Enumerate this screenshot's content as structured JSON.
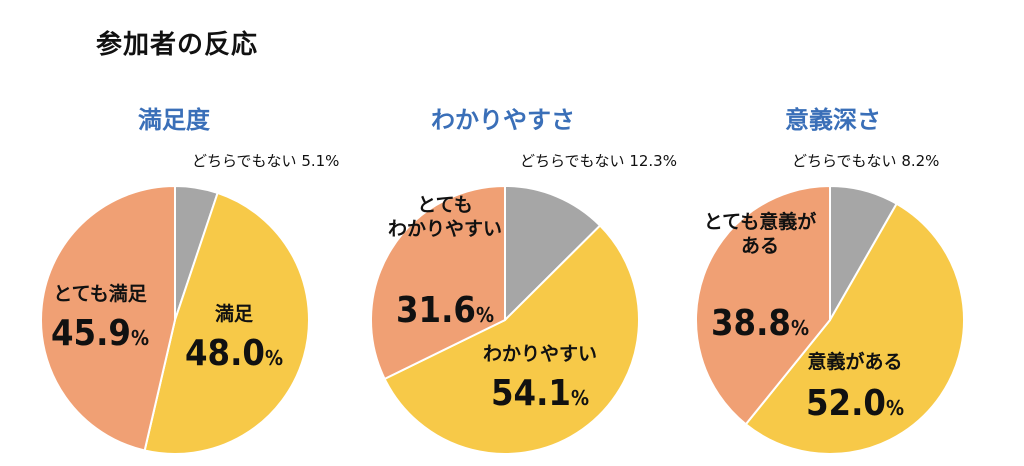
{
  "title": "参加者の反応",
  "colors": {
    "strong": "#f0a074",
    "positive": "#f7c948",
    "neutral": "#a6a6a6",
    "title": "#3a6fb8"
  },
  "chart_data": [
    {
      "type": "pie",
      "title": "満足度",
      "slices": [
        {
          "label": "どちらでもない",
          "value": 5.1,
          "display": "5.1%",
          "color": "#a6a6a6"
        },
        {
          "label": "満足",
          "value": 48.0,
          "display": "48.0",
          "color": "#f7c948"
        },
        {
          "label": "とても満足",
          "value": 45.9,
          "display": "45.9",
          "color": "#f0a074"
        }
      ]
    },
    {
      "type": "pie",
      "title": "わかりやすさ",
      "slices": [
        {
          "label": "どちらでもない",
          "value": 12.3,
          "display": "12.3%",
          "color": "#a6a6a6"
        },
        {
          "label": "わかりやすい",
          "value": 54.1,
          "display": "54.1",
          "color": "#f7c948"
        },
        {
          "label": "とても\nわかりやすい",
          "value": 31.6,
          "display": "31.6",
          "color": "#f0a074"
        }
      ]
    },
    {
      "type": "pie",
      "title": "意義深さ",
      "slices": [
        {
          "label": "どちらでもない",
          "value": 8.2,
          "display": "8.2%",
          "color": "#a6a6a6"
        },
        {
          "label": "意義がある",
          "value": 52.0,
          "display": "52.0",
          "color": "#f7c948"
        },
        {
          "label": "とても意義が\nある",
          "value": 38.8,
          "display": "38.8",
          "color": "#f0a074"
        }
      ]
    }
  ]
}
